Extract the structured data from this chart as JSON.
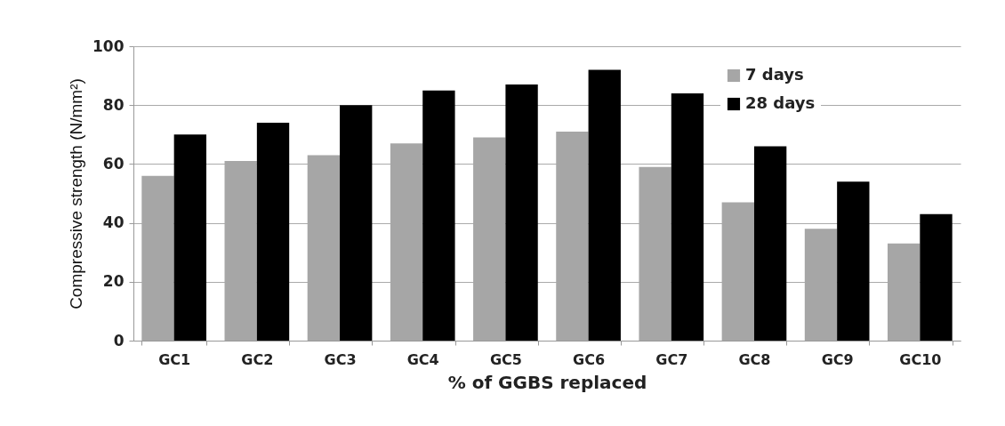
{
  "chart_data": {
    "type": "bar",
    "xlabel": "% of GGBS replaced",
    "ylabel": "Compressive strength (N/mm²)",
    "categories": [
      "GC1",
      "GC2",
      "GC3",
      "GC4",
      "GC5",
      "GC6",
      "GC7",
      "GC8",
      "GC9",
      "GC10"
    ],
    "series": [
      {
        "name": "7 days",
        "color": "#a6a6a6",
        "values": [
          56,
          61,
          63,
          67,
          69,
          71,
          59,
          47,
          38,
          33
        ]
      },
      {
        "name": "28 days",
        "color": "#000000",
        "values": [
          70,
          74,
          80,
          85,
          87,
          92,
          84,
          66,
          54,
          43
        ]
      }
    ],
    "ylim": [
      0,
      100
    ],
    "yticks": [
      0,
      20,
      40,
      60,
      80,
      100
    ],
    "grid": "y",
    "legend": "top right"
  }
}
